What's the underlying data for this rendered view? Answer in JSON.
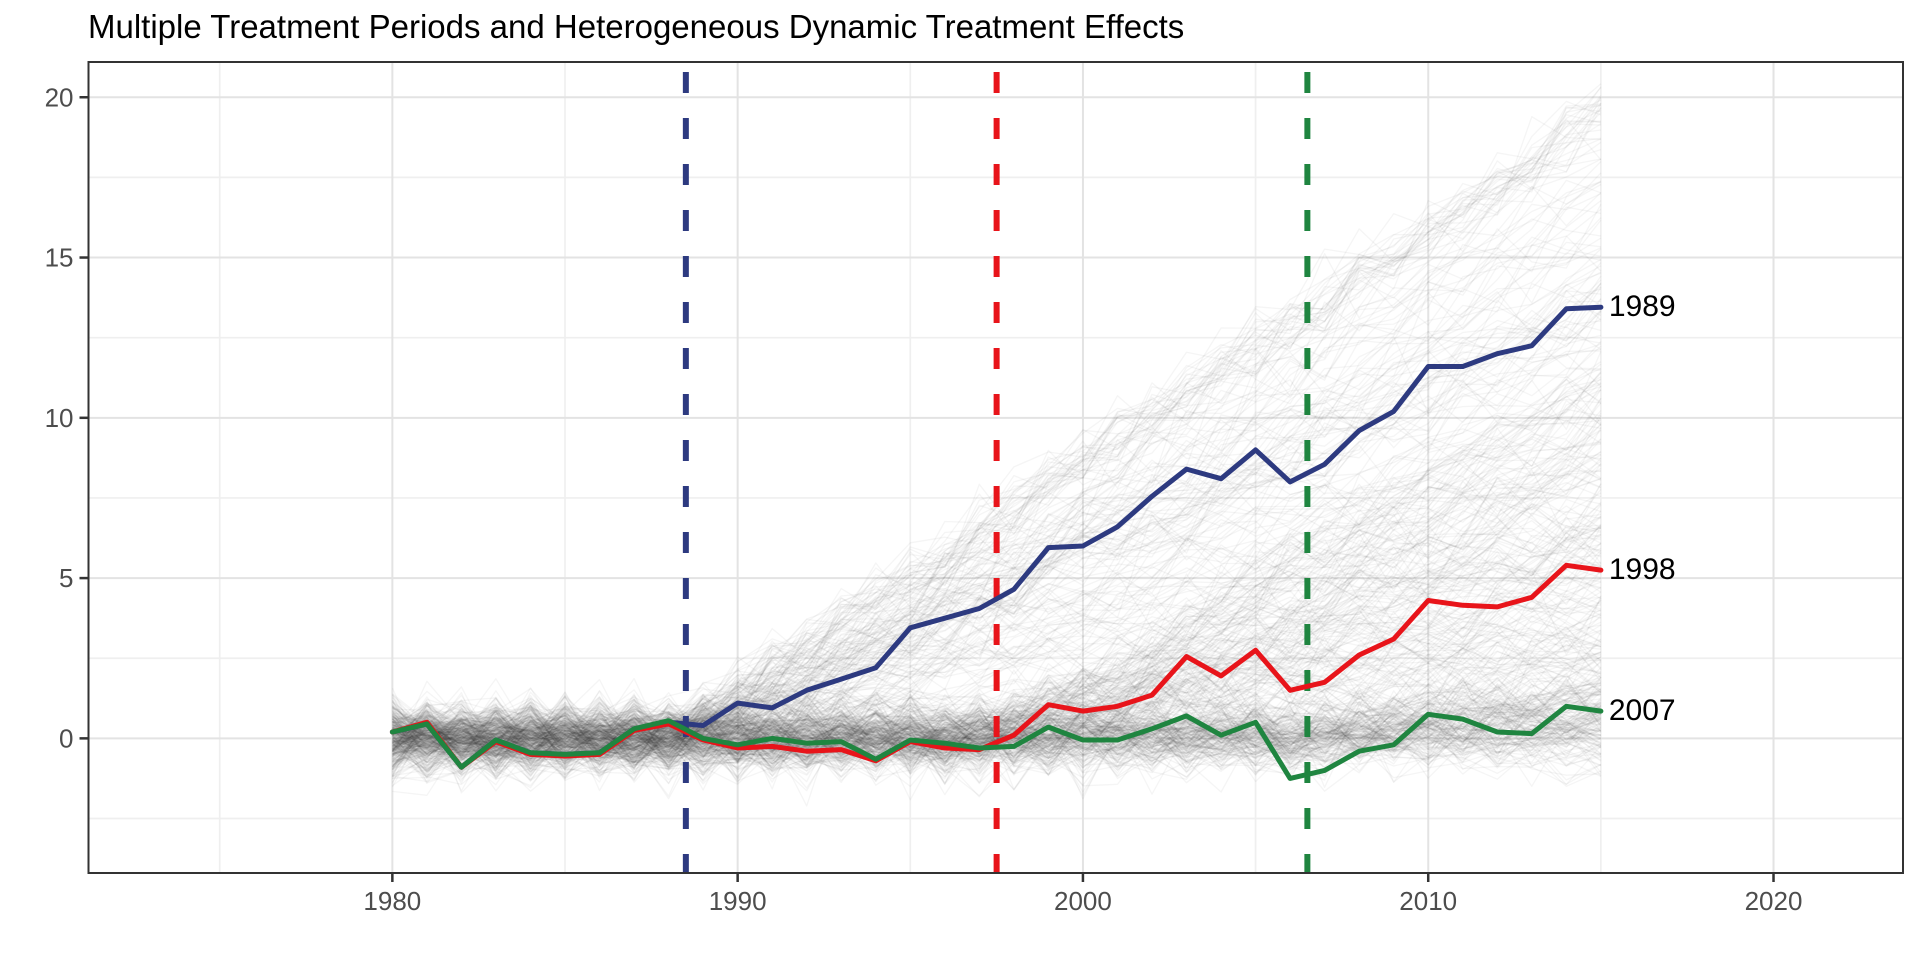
{
  "chart_data": {
    "type": "line",
    "title": "Multiple Treatment Periods and Heterogeneous Dynamic Treatment Effects",
    "xlabel": "",
    "ylabel": "",
    "x_range": [
      1971.2,
      2023.75
    ],
    "y_range": [
      -4.2,
      21.1
    ],
    "x_ticks": [
      1980,
      1990,
      2000,
      2010,
      2020
    ],
    "x_minor": [
      1975,
      1985,
      1995,
      2005,
      2015
    ],
    "y_ticks": [
      0,
      5,
      10,
      15,
      20
    ],
    "y_minor": [
      -2.5,
      2.5,
      7.5,
      12.5,
      17.5
    ],
    "grid": "major+minor",
    "legend": "line-end-labels",
    "x": [
      1980,
      1981,
      1982,
      1983,
      1984,
      1985,
      1986,
      1987,
      1988,
      1989,
      1990,
      1991,
      1992,
      1993,
      1994,
      1995,
      1996,
      1997,
      1998,
      1999,
      2000,
      2001,
      2002,
      2003,
      2004,
      2005,
      2006,
      2007,
      2008,
      2009,
      2010,
      2011,
      2012,
      2013,
      2014,
      2015
    ],
    "series": [
      {
        "name": "cohort-1989",
        "label": "1989",
        "treatment_year": 1989,
        "color": "#2d3a80",
        "values": [
          0.2,
          0.45,
          -0.9,
          -0.05,
          -0.45,
          -0.5,
          -0.45,
          0.3,
          0.5,
          0.4,
          1.1,
          0.95,
          1.5,
          1.85,
          2.2,
          3.45,
          3.75,
          4.05,
          4.65,
          5.95,
          6.0,
          6.6,
          7.55,
          8.4,
          8.1,
          9.0,
          8.0,
          8.55,
          9.6,
          10.2,
          11.6,
          11.6,
          12.0,
          12.25,
          13.4,
          13.45
        ]
      },
      {
        "name": "cohort-1998",
        "label": "1998",
        "treatment_year": 1998,
        "color": "#e8141a",
        "values": [
          0.2,
          0.5,
          -0.9,
          -0.1,
          -0.5,
          -0.55,
          -0.5,
          0.25,
          0.45,
          -0.05,
          -0.3,
          -0.25,
          -0.4,
          -0.35,
          -0.7,
          -0.1,
          -0.3,
          -0.35,
          0.1,
          1.05,
          0.85,
          1.0,
          1.35,
          2.55,
          1.95,
          2.75,
          1.5,
          1.75,
          2.6,
          3.1,
          4.3,
          4.15,
          4.1,
          4.4,
          5.4,
          5.25
        ]
      },
      {
        "name": "cohort-2007",
        "label": "2007",
        "treatment_year": 2007,
        "color": "#1f8540",
        "values": [
          0.2,
          0.45,
          -0.9,
          -0.05,
          -0.45,
          -0.5,
          -0.45,
          0.3,
          0.55,
          0.0,
          -0.2,
          0.0,
          -0.15,
          -0.1,
          -0.65,
          -0.05,
          -0.15,
          -0.3,
          -0.25,
          0.35,
          -0.05,
          -0.05,
          0.3,
          0.7,
          0.1,
          0.5,
          -1.25,
          -1.0,
          -0.4,
          -0.2,
          0.75,
          0.6,
          0.2,
          0.15,
          1.0,
          0.85
        ]
      }
    ],
    "vlines": [
      {
        "name": "treatment-start-1989",
        "x": 1988.5,
        "color": "#2d3a80"
      },
      {
        "name": "treatment-start-1998",
        "x": 1997.5,
        "color": "#e8141a"
      },
      {
        "name": "treatment-start-2007",
        "x": 2006.5,
        "color": "#1f8540"
      }
    ],
    "background_lines": {
      "description": "individual unit trajectories",
      "count": 450,
      "seed": 42,
      "noise_sd": 0.55,
      "groups": [
        1989,
        1998,
        2007
      ],
      "slopes": {
        "1989": {
          "mean": 0.5,
          "sd": 0.22,
          "min": 0.02,
          "max": 0.72
        },
        "1998": {
          "mean": 0.3,
          "sd": 0.19,
          "min": 0.0,
          "max": 0.62
        },
        "2007": {
          "mean": 0.1,
          "sd": 0.11,
          "min": -0.1,
          "max": 0.4
        }
      },
      "color": "#3c3c3c",
      "opacity": 0.05
    },
    "colors": {
      "grid_major": "#e3e3e3",
      "grid_minor": "#efefef",
      "panel_border": "#333333",
      "tick_mark": "#333333",
      "tick_label": "#4d4d4d",
      "series_label": "#000000",
      "background": "#ffffff"
    }
  }
}
